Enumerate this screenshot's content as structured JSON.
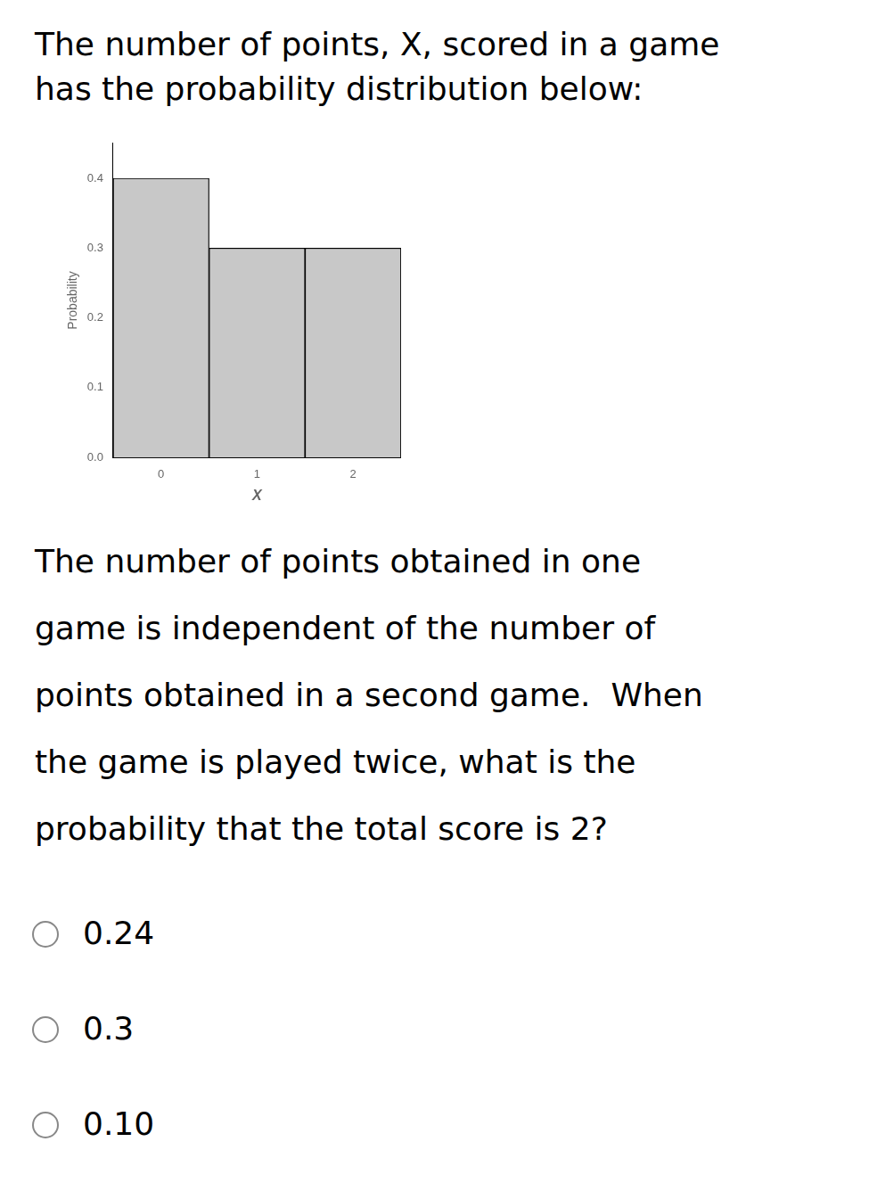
{
  "chart_data": {
    "type": "bar",
    "title": [
      "The number of points, X, scored in a game",
      "has the probability distribution below:"
    ],
    "categories": [
      0,
      1,
      2
    ],
    "values": [
      0.4,
      0.3,
      0.3
    ],
    "color": "#c8c8c8",
    "x_label": "X",
    "y_label": "Probability",
    "ylim": [
      0,
      0.45
    ],
    "yticks": [
      {
        "value": 0,
        "label": "0.0"
      },
      0.1,
      0.2,
      0.3,
      0.4
    ],
    "grid": false,
    "annotations": [
      [
        "The number of points obtained in one",
        "game is independent of the number of",
        "points obtained in a second game.  When",
        "the game is played twice, what is the",
        "probability that the total score is 2?"
      ],
      [
        "0.24",
        "0.3",
        "0.10"
      ]
    ]
  }
}
